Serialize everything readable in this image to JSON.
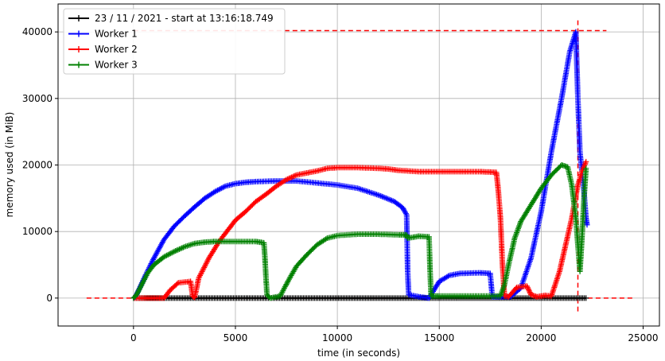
{
  "chart_data": {
    "type": "line",
    "xlabel": "time (in seconds)",
    "ylabel": "memory used (in MiB)",
    "xlim": [
      -3700,
      25800
    ],
    "ylim": [
      -4200,
      44200
    ],
    "x_ticks": [
      0,
      5000,
      10000,
      15000,
      20000,
      25000
    ],
    "y_ticks": [
      0,
      10000,
      20000,
      30000,
      40000
    ],
    "x_tick_labels": [
      "0",
      "5000",
      "10000",
      "15000",
      "20000",
      "25000"
    ],
    "y_tick_labels": [
      "0",
      "10000",
      "20000",
      "30000",
      "40000"
    ],
    "grid": true,
    "legend_position": "top-left",
    "markers": "+",
    "series": [
      {
        "name": "23 / 11 / 2021 - start at 13:16:18.749",
        "color": "#000000",
        "points": [
          [
            0,
            0
          ],
          [
            22200,
            0
          ]
        ]
      },
      {
        "name": "Worker 1",
        "color": "#0000ff",
        "points": [
          [
            0,
            0
          ],
          [
            100,
            200
          ],
          [
            300,
            1500
          ],
          [
            600,
            3500
          ],
          [
            1000,
            6000
          ],
          [
            1500,
            8800
          ],
          [
            2000,
            10800
          ],
          [
            2500,
            12300
          ],
          [
            3000,
            13700
          ],
          [
            3500,
            15000
          ],
          [
            4000,
            16000
          ],
          [
            4500,
            16800
          ],
          [
            5000,
            17200
          ],
          [
            5500,
            17400
          ],
          [
            6000,
            17500
          ],
          [
            7000,
            17600
          ],
          [
            8000,
            17600
          ],
          [
            9000,
            17300
          ],
          [
            10000,
            17000
          ],
          [
            11000,
            16500
          ],
          [
            12000,
            15500
          ],
          [
            12800,
            14500
          ],
          [
            13200,
            13600
          ],
          [
            13400,
            12500
          ],
          [
            13450,
            4000
          ],
          [
            13500,
            500
          ],
          [
            14000,
            200
          ],
          [
            14500,
            0
          ],
          [
            14700,
            1000
          ],
          [
            15000,
            2500
          ],
          [
            15500,
            3400
          ],
          [
            16000,
            3700
          ],
          [
            17000,
            3800
          ],
          [
            17500,
            3700
          ],
          [
            17600,
            200
          ],
          [
            18500,
            200
          ],
          [
            19000,
            1500
          ],
          [
            19500,
            6000
          ],
          [
            20000,
            13000
          ],
          [
            20500,
            22000
          ],
          [
            21000,
            30000
          ],
          [
            21400,
            37000
          ],
          [
            21700,
            40000
          ],
          [
            21800,
            30000
          ],
          [
            21900,
            22000
          ],
          [
            22100,
            16000
          ],
          [
            22200,
            12000
          ],
          [
            22250,
            11000
          ]
        ]
      },
      {
        "name": "Worker 2",
        "color": "#ff0000",
        "points": [
          [
            0,
            0
          ],
          [
            1500,
            0
          ],
          [
            1800,
            1200
          ],
          [
            2200,
            2300
          ],
          [
            2800,
            2500
          ],
          [
            2900,
            300
          ],
          [
            3000,
            100
          ],
          [
            3200,
            3000
          ],
          [
            3700,
            6000
          ],
          [
            4200,
            8500
          ],
          [
            4700,
            10500
          ],
          [
            5000,
            11700
          ],
          [
            5500,
            13000
          ],
          [
            6000,
            14500
          ],
          [
            6500,
            15600
          ],
          [
            7000,
            16800
          ],
          [
            7500,
            17800
          ],
          [
            8000,
            18500
          ],
          [
            8500,
            18800
          ],
          [
            9000,
            19100
          ],
          [
            9500,
            19500
          ],
          [
            10000,
            19600
          ],
          [
            11000,
            19600
          ],
          [
            12000,
            19500
          ],
          [
            12500,
            19400
          ],
          [
            13000,
            19200
          ],
          [
            14000,
            19000
          ],
          [
            15000,
            19000
          ],
          [
            16000,
            19000
          ],
          [
            17000,
            19000
          ],
          [
            17800,
            18900
          ],
          [
            17900,
            16000
          ],
          [
            18000,
            12000
          ],
          [
            18100,
            5000
          ],
          [
            18200,
            300
          ],
          [
            18400,
            200
          ],
          [
            18800,
            1600
          ],
          [
            19300,
            1800
          ],
          [
            19500,
            500
          ],
          [
            19800,
            200
          ],
          [
            20200,
            400
          ],
          [
            20500,
            300
          ],
          [
            20900,
            4000
          ],
          [
            21200,
            8000
          ],
          [
            21500,
            12000
          ],
          [
            21800,
            17000
          ],
          [
            22000,
            19000
          ],
          [
            22200,
            20500
          ]
        ]
      },
      {
        "name": "Worker 3",
        "color": "#008000",
        "points": [
          [
            0,
            0
          ],
          [
            150,
            500
          ],
          [
            400,
            2000
          ],
          [
            700,
            3800
          ],
          [
            1000,
            5000
          ],
          [
            1500,
            6200
          ],
          [
            2000,
            7000
          ],
          [
            2500,
            7700
          ],
          [
            3000,
            8200
          ],
          [
            3500,
            8400
          ],
          [
            4000,
            8500
          ],
          [
            5000,
            8500
          ],
          [
            6000,
            8500
          ],
          [
            6400,
            8300
          ],
          [
            6450,
            6000
          ],
          [
            6500,
            3000
          ],
          [
            6550,
            500
          ],
          [
            6700,
            0
          ],
          [
            7200,
            300
          ],
          [
            7400,
            1500
          ],
          [
            7700,
            3200
          ],
          [
            8000,
            4800
          ],
          [
            8500,
            6500
          ],
          [
            9000,
            8000
          ],
          [
            9500,
            9000
          ],
          [
            10000,
            9400
          ],
          [
            11000,
            9600
          ],
          [
            12000,
            9600
          ],
          [
            13000,
            9500
          ],
          [
            13400,
            9500
          ],
          [
            13450,
            9000
          ],
          [
            14000,
            9300
          ],
          [
            14500,
            9200
          ],
          [
            14550,
            4000
          ],
          [
            14600,
            300
          ],
          [
            15000,
            300
          ],
          [
            16000,
            300
          ],
          [
            17000,
            300
          ],
          [
            18000,
            300
          ],
          [
            18200,
            2000
          ],
          [
            18400,
            5000
          ],
          [
            18700,
            9000
          ],
          [
            19000,
            11500
          ],
          [
            19500,
            14000
          ],
          [
            20000,
            16500
          ],
          [
            20500,
            18500
          ],
          [
            21000,
            20000
          ],
          [
            21300,
            19700
          ],
          [
            21500,
            17000
          ],
          [
            21700,
            12000
          ],
          [
            21800,
            8000
          ],
          [
            21900,
            4000
          ],
          [
            22000,
            9000
          ],
          [
            22100,
            15000
          ],
          [
            22200,
            19500
          ]
        ]
      }
    ],
    "reference_lines": [
      {
        "orientation": "horizontal",
        "y": 0,
        "x_range": [
          -2300,
          24500
        ],
        "color": "#ff0000",
        "style": "dashed"
      },
      {
        "orientation": "horizontal",
        "y": 40200,
        "x_range": [
          0,
          23200
        ],
        "color": "#ff0000",
        "style": "dashed"
      },
      {
        "orientation": "vertical",
        "x": 21800,
        "y_range": [
          -2000,
          42000
        ],
        "color": "#ff0000",
        "style": "dashed"
      }
    ]
  }
}
